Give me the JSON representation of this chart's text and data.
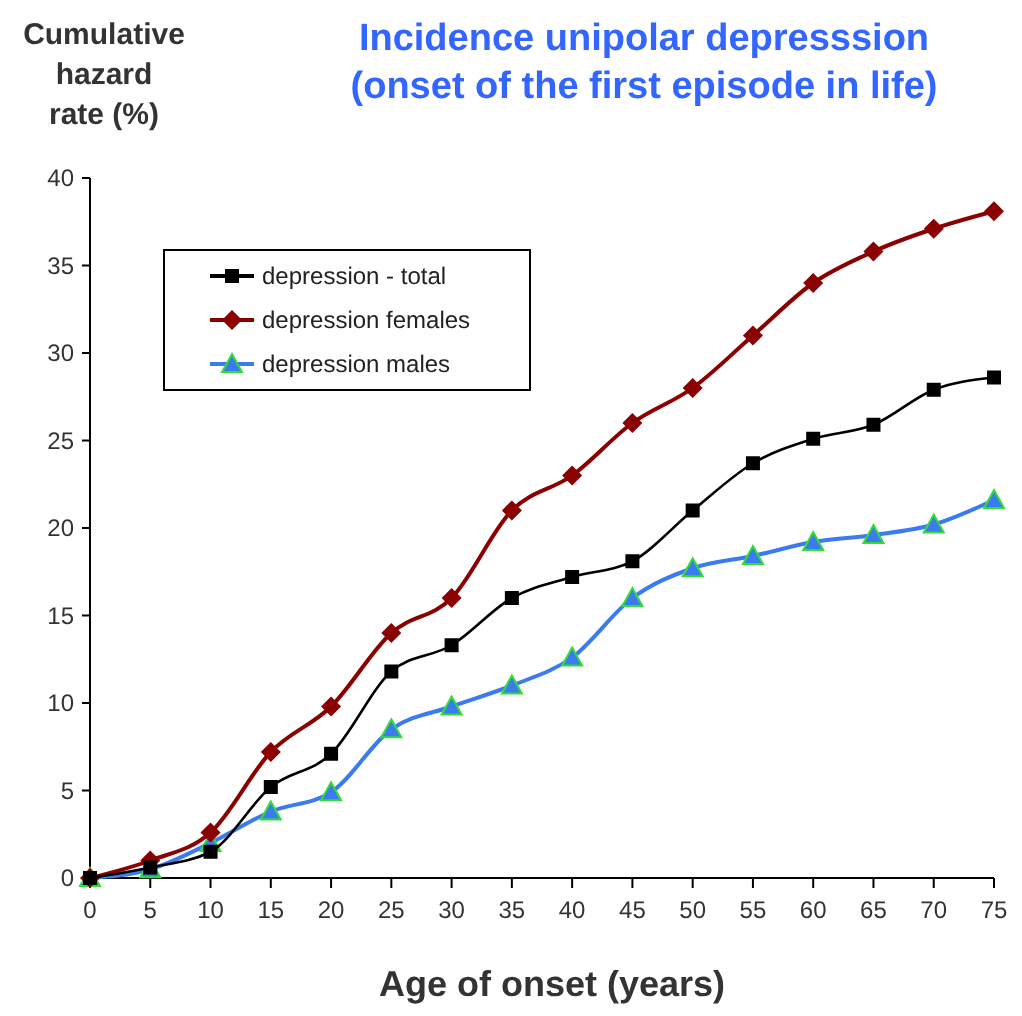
{
  "chart_data": {
    "type": "line",
    "title": "Incidence unipolar depresssion\n(onset of the first episode in life)",
    "xlabel": "Age of onset (years)",
    "ylabel": "Cumulative\nhazard\nrate (%)",
    "x": [
      0,
      5,
      10,
      15,
      20,
      25,
      30,
      35,
      40,
      45,
      50,
      55,
      60,
      65,
      70,
      75
    ],
    "xlim": [
      0,
      75
    ],
    "xticks": [
      0,
      5,
      10,
      15,
      20,
      25,
      30,
      35,
      40,
      45,
      50,
      55,
      60,
      65,
      70,
      75
    ],
    "ylim": [
      0,
      40
    ],
    "yticks": [
      0,
      5,
      10,
      15,
      20,
      25,
      30,
      35,
      40
    ],
    "grid": false,
    "legend": "top left",
    "series": [
      {
        "name": "depression - total",
        "color": "#000000",
        "marker": "square",
        "values": [
          0,
          0.6,
          1.5,
          5.2,
          7.1,
          11.8,
          13.3,
          16,
          17.2,
          18.1,
          21,
          23.7,
          25.1,
          25.9,
          27.9,
          28.6
        ]
      },
      {
        "name": "depression females",
        "color": "#8b0000",
        "marker": "diamond",
        "values": [
          0,
          1,
          2.6,
          7.2,
          9.8,
          14,
          16,
          21,
          23,
          26,
          28,
          31,
          34,
          35.8,
          37.1,
          38.1
        ]
      },
      {
        "name": "depression males",
        "color": "#3a7cf0",
        "marker": "triangle",
        "values": [
          0,
          0.5,
          2,
          3.8,
          4.9,
          8.5,
          9.8,
          11,
          12.6,
          16,
          17.7,
          18.4,
          19.2,
          19.6,
          20.2,
          21.6
        ]
      }
    ]
  }
}
